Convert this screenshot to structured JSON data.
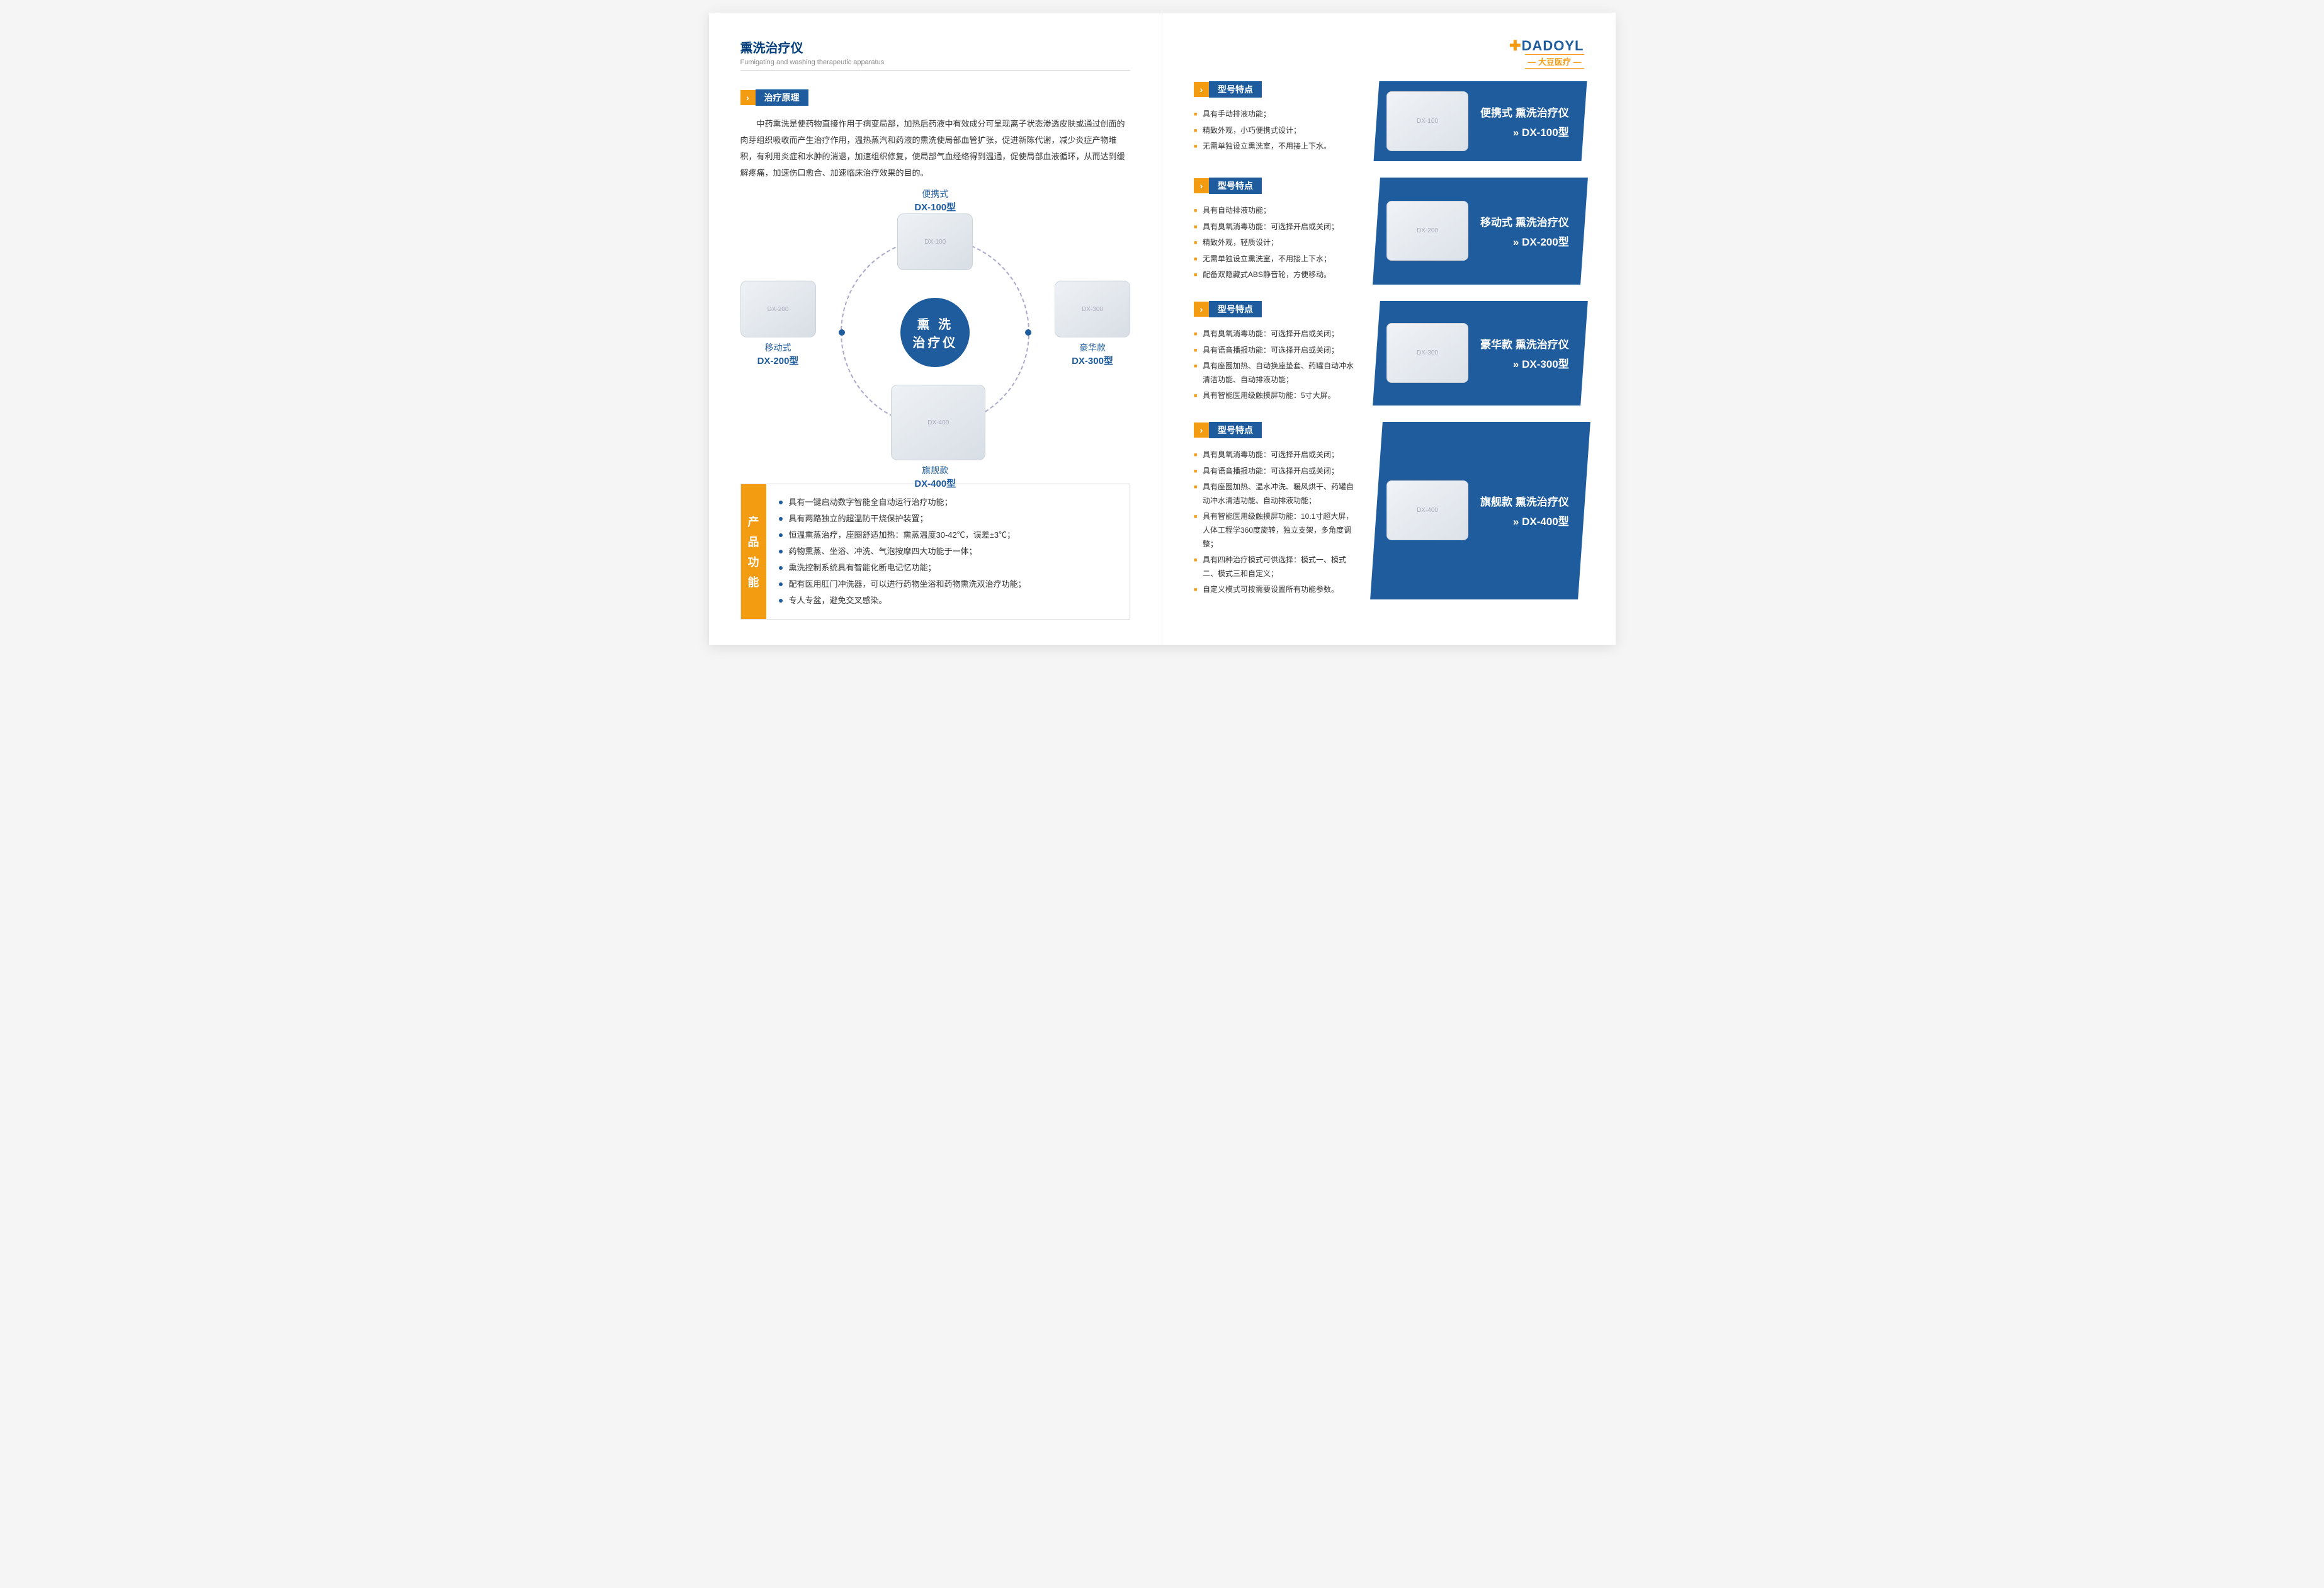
{
  "header": {
    "title": "熏洗治疗仪",
    "subtitle": "Fumigating and washing therapeutic apparatus"
  },
  "logo": {
    "main": "DADOYL",
    "sub": "— 大豆医疗 —"
  },
  "watermark": "DADOYL",
  "principle": {
    "label": "治疗原理",
    "text": "中药熏洗是使药物直接作用于病变局部，加热后药液中有效成分可呈现离子状态渗透皮肤或通过创面的肉芽组织吸收而产生治疗作用，温热蒸汽和药液的熏洗使局部血管扩张，促进新陈代谢，减少炎症产物堆积，有利用炎症和水肿的消退，加速组织修复，使局部气血经络得到温通，促使局部血液循环，从而达到缓解疼痛，加速伤口愈合、加速临床治疗效果的目的。"
  },
  "center": {
    "line1": "熏 洗",
    "line2": "治疗仪"
  },
  "nodes": {
    "top": {
      "label1": "便携式",
      "label2": "DX-100型"
    },
    "right": {
      "label1": "豪华款",
      "label2": "DX-300型"
    },
    "bottom": {
      "label1": "旗舰款",
      "label2": "DX-400型"
    },
    "left": {
      "label1": "移动式",
      "label2": "DX-200型"
    }
  },
  "features": {
    "sideLabel": "产品功能",
    "items": [
      "具有一键启动数字智能全自动运行治疗功能；",
      "具有两路独立的超温防干烧保护装置；",
      "恒温熏蒸治疗，座圈舒适加热：熏蒸温度30-42℃，误差±3℃；",
      "药物熏蒸、坐浴、冲洗、气泡按摩四大功能于一体；",
      "熏洗控制系统具有智能化断电记忆功能；",
      "配有医用肛门冲洗器，可以进行药物坐浴和药物熏洗双治疗功能；",
      "专人专盆，避免交叉感染。"
    ]
  },
  "specLabel": "型号特点",
  "models": [
    {
      "title": "便携式 熏洗治疗仪",
      "model": "DX-100型",
      "specs": [
        "具有手动排液功能；",
        "精致外观，小巧便携式设计；",
        "无需单独设立熏洗室，不用接上下水。"
      ]
    },
    {
      "title": "移动式 熏洗治疗仪",
      "model": "DX-200型",
      "specs": [
        "具有自动排液功能；",
        "具有臭氧消毒功能：可选择开启或关闭；",
        "精致外观，轻质设计；",
        "无需单独设立熏洗室，不用接上下水；",
        "配备双隐藏式ABS静音轮，方便移动。"
      ]
    },
    {
      "title": "豪华款 熏洗治疗仪",
      "model": "DX-300型",
      "specs": [
        "具有臭氧消毒功能：可选择开启或关闭；",
        "具有语音播报功能：可选择开启或关闭；",
        "具有座圈加热、自动换座垫套、药罐自动冲水清洁功能、自动排液功能；",
        "具有智能医用级触摸屏功能：5寸大屏。"
      ]
    },
    {
      "title": "旗舰款 熏洗治疗仪",
      "model": "DX-400型",
      "specs": [
        "具有臭氧消毒功能：可选择开启或关闭；",
        "具有语音播报功能：可选择开启或关闭；",
        "具有座圈加热、温水冲洗、暖风烘干、药罐自动冲水清洁功能、自动排液功能；",
        "具有智能医用级触摸屏功能：10.1寸超大屏，人体工程学360度旋转，独立支架，多角度调整；",
        "具有四种治疗模式可供选择：模式一、模式二、模式三和自定义；",
        "自定义模式可按需要设置所有功能参数。"
      ]
    }
  ]
}
